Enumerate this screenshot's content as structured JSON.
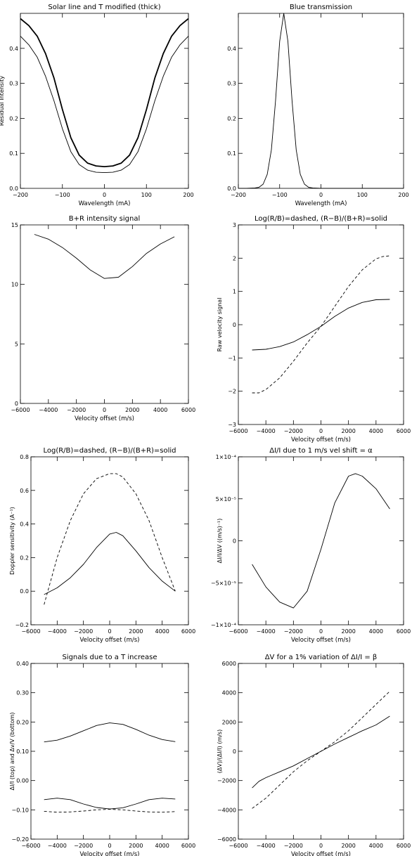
{
  "chart_data": [
    {
      "type": "line",
      "title": "Solar line and T modified (thick)",
      "xlabel": "Wavelength (mA)",
      "ylabel": "Residual Intensity",
      "xlim": [
        -200,
        200
      ],
      "ylim": [
        0,
        0.5
      ],
      "xticks": [
        -200,
        -100,
        0,
        100,
        200
      ],
      "xticklabels": [
        "−200",
        "−100",
        "0",
        "100",
        "200"
      ],
      "yticks": [
        0,
        0.1,
        0.2,
        0.3,
        0.4
      ],
      "yticklabels": [
        "0.0",
        "0.1",
        "0.2",
        "0.3",
        "0.4"
      ],
      "series": [
        {
          "style": "thick",
          "x": [
            -200,
            -180,
            -160,
            -140,
            -120,
            -100,
            -80,
            -60,
            -40,
            -20,
            0,
            20,
            40,
            60,
            80,
            100,
            120,
            140,
            160,
            180,
            200
          ],
          "y": [
            0.485,
            0.465,
            0.435,
            0.385,
            0.315,
            0.225,
            0.145,
            0.095,
            0.072,
            0.064,
            0.062,
            0.064,
            0.072,
            0.095,
            0.145,
            0.225,
            0.315,
            0.385,
            0.435,
            0.465,
            0.485
          ]
        },
        {
          "style": "thin",
          "x": [
            -200,
            -180,
            -160,
            -140,
            -120,
            -100,
            -80,
            -60,
            -40,
            -20,
            0,
            20,
            40,
            60,
            80,
            100,
            120,
            140,
            160,
            180,
            200
          ],
          "y": [
            0.435,
            0.41,
            0.375,
            0.32,
            0.25,
            0.17,
            0.105,
            0.068,
            0.052,
            0.046,
            0.045,
            0.046,
            0.052,
            0.068,
            0.105,
            0.17,
            0.25,
            0.32,
            0.375,
            0.41,
            0.435
          ]
        }
      ]
    },
    {
      "type": "line",
      "title": "Blue transmission",
      "xlabel": "Wavelength (mA)",
      "ylabel": "",
      "xlim": [
        -200,
        200
      ],
      "ylim": [
        0,
        0.5
      ],
      "xticks": [
        -200,
        -100,
        0,
        100,
        200
      ],
      "xticklabels": [
        "−200",
        "−100",
        "0",
        "100",
        "200"
      ],
      "yticks": [
        0,
        0.1,
        0.2,
        0.3,
        0.4
      ],
      "yticklabels": [
        "0.0",
        "0.1",
        "0.2",
        "0.3",
        "0.4"
      ],
      "series": [
        {
          "style": "thin",
          "x": [
            -200,
            -180,
            -160,
            -150,
            -140,
            -130,
            -120,
            -110,
            -100,
            -90,
            -80,
            -70,
            -60,
            -50,
            -40,
            -30,
            -20,
            0,
            50,
            100,
            200
          ],
          "y": [
            0,
            0,
            0.001,
            0.003,
            0.012,
            0.04,
            0.11,
            0.25,
            0.42,
            0.5,
            0.42,
            0.25,
            0.11,
            0.04,
            0.012,
            0.003,
            0.001,
            0,
            0,
            0,
            0
          ]
        }
      ]
    },
    {
      "type": "line",
      "title": "B+R intensity signal",
      "xlabel": "Velocity offset (m/s)",
      "ylabel": "",
      "xlim": [
        -6000,
        6000
      ],
      "ylim": [
        0,
        15
      ],
      "xticks": [
        -6000,
        -4000,
        -2000,
        0,
        2000,
        4000,
        6000
      ],
      "xticklabels": [
        "−6000",
        "−4000",
        "−2000",
        "0",
        "2000",
        "4000",
        "6000"
      ],
      "yticks": [
        0,
        5,
        10,
        15
      ],
      "yticklabels": [
        "0",
        "5",
        "10",
        "15"
      ],
      "series": [
        {
          "style": "thin",
          "x": [
            -5000,
            -4000,
            -3000,
            -2000,
            -1000,
            0,
            1000,
            2000,
            3000,
            4000,
            5000
          ],
          "y": [
            14.2,
            13.8,
            13.1,
            12.2,
            11.2,
            10.5,
            10.6,
            11.5,
            12.6,
            13.4,
            14.0
          ]
        }
      ]
    },
    {
      "type": "line",
      "title": "Log(R/B)=dashed, (R−B)/(B+R)=solid",
      "xlabel": "Velocity offset (m/s)",
      "ylabel": "Raw velocity signal",
      "xlim": [
        -6000,
        6000
      ],
      "ylim": [
        -3,
        3
      ],
      "xticks": [
        -6000,
        -4000,
        -2000,
        0,
        2000,
        4000,
        6000
      ],
      "xticklabels": [
        "−6000",
        "−4000",
        "−2000",
        "0",
        "2000",
        "4000",
        "6000"
      ],
      "yticks": [
        -3,
        -2,
        -1,
        0,
        1,
        2,
        3
      ],
      "yticklabels": [
        "−3",
        "−2",
        "−1",
        "0",
        "1",
        "2",
        "3"
      ],
      "series": [
        {
          "style": "solid",
          "x": [
            -5000,
            -4000,
            -3000,
            -2000,
            -1000,
            0,
            1000,
            2000,
            3000,
            4000,
            5000
          ],
          "y": [
            -0.76,
            -0.74,
            -0.66,
            -0.52,
            -0.3,
            -0.05,
            0.25,
            0.5,
            0.67,
            0.75,
            0.76
          ]
        },
        {
          "style": "dashed",
          "x": [
            -5000,
            -4500,
            -4000,
            -3000,
            -2000,
            -1000,
            0,
            1000,
            2000,
            3000,
            4000,
            4500,
            5000
          ],
          "y": [
            -2.05,
            -2.05,
            -1.95,
            -1.6,
            -1.1,
            -0.55,
            -0.05,
            0.55,
            1.15,
            1.65,
            1.98,
            2.05,
            2.07
          ]
        }
      ]
    },
    {
      "type": "line",
      "title": "Log(R/B)=dashed, (R−B)/(B+R)=solid",
      "xlabel": "Velocity offset (m/s)",
      "ylabel": "Doppler sensitivity (A⁻¹)",
      "xlim": [
        -6000,
        6000
      ],
      "ylim": [
        -0.2,
        0.8
      ],
      "xticks": [
        -6000,
        -4000,
        -2000,
        0,
        2000,
        4000,
        6000
      ],
      "xticklabels": [
        "−6000",
        "−4000",
        "−2000",
        "0",
        "2000",
        "4000",
        "6000"
      ],
      "yticks": [
        -0.2,
        0,
        0.2,
        0.4,
        0.6,
        0.8
      ],
      "yticklabels": [
        "−0.2",
        "0.0",
        "0.2",
        "0.4",
        "0.6",
        "0.8"
      ],
      "series": [
        {
          "style": "solid",
          "x": [
            -5000,
            -4000,
            -3000,
            -2000,
            -1000,
            0,
            500,
            1000,
            2000,
            3000,
            4000,
            5000
          ],
          "y": [
            -0.02,
            0.02,
            0.08,
            0.16,
            0.26,
            0.34,
            0.35,
            0.33,
            0.24,
            0.14,
            0.06,
            0.0
          ]
        },
        {
          "style": "dashed",
          "x": [
            -5000,
            -4000,
            -3000,
            -2000,
            -1000,
            0,
            500,
            1000,
            2000,
            3000,
            4000,
            5000
          ],
          "y": [
            -0.08,
            0.2,
            0.42,
            0.58,
            0.67,
            0.7,
            0.7,
            0.68,
            0.58,
            0.42,
            0.2,
            0.0
          ]
        }
      ]
    },
    {
      "type": "line",
      "title": "ΔI/I due to 1 m/s vel shift = α",
      "xlabel": "Velocity offset (m/s)",
      "ylabel": "ΔI/I/ΔV ((m/s)⁻¹)",
      "xlim": [
        -6000,
        6000
      ],
      "ylim": [
        -0.0001,
        0.0001
      ],
      "xticks": [
        -6000,
        -4000,
        -2000,
        0,
        2000,
        4000,
        6000
      ],
      "xticklabels": [
        "−6000",
        "−4000",
        "−2000",
        "0",
        "2000",
        "4000",
        "6000"
      ],
      "yticks": [
        -0.0001,
        -5e-05,
        0,
        5e-05,
        0.0001
      ],
      "yticklabels": [
        "−1×10⁻⁴",
        "−5×10⁻⁵",
        "0",
        "5×10⁻⁵",
        "1×10⁻⁴"
      ],
      "series": [
        {
          "style": "solid",
          "x": [
            -5000,
            -4000,
            -3000,
            -2000,
            -1000,
            0,
            1000,
            2000,
            2500,
            3000,
            4000,
            5000
          ],
          "y": [
            -2.8e-05,
            -5.5e-05,
            -7.3e-05,
            -8e-05,
            -6e-05,
            -1e-05,
            4.5e-05,
            7.7e-05,
            8e-05,
            7.7e-05,
            6.2e-05,
            3.8e-05
          ]
        }
      ]
    },
    {
      "type": "line",
      "title": "Signals due to a T increase",
      "xlabel": "Velocity offset (m/s)",
      "ylabel": "ΔI/I (top) and Δv/V (bottom)",
      "xlim": [
        -6000,
        6000
      ],
      "ylim": [
        -0.2,
        0.4
      ],
      "xticks": [
        -6000,
        -4000,
        -2000,
        0,
        2000,
        4000,
        6000
      ],
      "xticklabels": [
        "−6000",
        "−4000",
        "−2000",
        "0",
        "2000",
        "4000",
        "6000"
      ],
      "yticks": [
        -0.2,
        -0.1,
        0,
        0.1,
        0.2,
        0.3,
        0.4
      ],
      "yticklabels": [
        "−0.20",
        "−0.10",
        "0.00",
        "0.10",
        "0.20",
        "0.30",
        "0.40"
      ],
      "series": [
        {
          "style": "solid",
          "x": [
            -5000,
            -4000,
            -3000,
            -2000,
            -1000,
            0,
            1000,
            2000,
            3000,
            4000,
            5000
          ],
          "y": [
            0.132,
            0.138,
            0.152,
            0.17,
            0.188,
            0.197,
            0.192,
            0.175,
            0.155,
            0.14,
            0.133
          ]
        },
        {
          "style": "solid",
          "x": [
            -5000,
            -4000,
            -3000,
            -2000,
            -1000,
            0,
            1000,
            2000,
            3000,
            4000,
            5000
          ],
          "y": [
            -0.065,
            -0.06,
            -0.065,
            -0.08,
            -0.092,
            -0.097,
            -0.093,
            -0.08,
            -0.065,
            -0.06,
            -0.063
          ]
        },
        {
          "style": "dashed",
          "x": [
            -5000,
            -4000,
            -3000,
            -2000,
            -1000,
            0,
            1000,
            2000,
            3000,
            4000,
            5000
          ],
          "y": [
            -0.105,
            -0.108,
            -0.107,
            -0.104,
            -0.1,
            -0.098,
            -0.1,
            -0.104,
            -0.107,
            -0.108,
            -0.106
          ]
        }
      ]
    },
    {
      "type": "line",
      "title": "ΔV for a 1% variation of ΔI/I = β",
      "xlabel": "Velocity offset (m/s)",
      "ylabel": "(ΔV)/(ΔI/I) (m/s)",
      "xlim": [
        -6000,
        6000
      ],
      "ylim": [
        -6000,
        6000
      ],
      "xticks": [
        -6000,
        -4000,
        -2000,
        0,
        2000,
        4000,
        6000
      ],
      "xticklabels": [
        "−6000",
        "−4000",
        "−2000",
        "0",
        "2000",
        "4000",
        "6000"
      ],
      "yticks": [
        -6000,
        -4000,
        -2000,
        0,
        2000,
        4000,
        6000
      ],
      "yticklabels": [
        "−6000",
        "−4000",
        "−2000",
        "0",
        "2000",
        "4000",
        "6000"
      ],
      "series": [
        {
          "style": "solid",
          "x": [
            -5000,
            -4500,
            -4000,
            -3000,
            -2000,
            -1000,
            0,
            1000,
            2000,
            3000,
            4000,
            5000
          ],
          "y": [
            -2500,
            -2050,
            -1800,
            -1400,
            -1000,
            -500,
            0,
            500,
            950,
            1400,
            1800,
            2400
          ]
        },
        {
          "style": "dashed",
          "x": [
            -5000,
            -4000,
            -3000,
            -2000,
            -1000,
            0,
            1000,
            2000,
            3000,
            4000,
            5000
          ],
          "y": [
            -3900,
            -3200,
            -2300,
            -1400,
            -650,
            0,
            650,
            1400,
            2300,
            3200,
            4100
          ]
        }
      ]
    }
  ]
}
